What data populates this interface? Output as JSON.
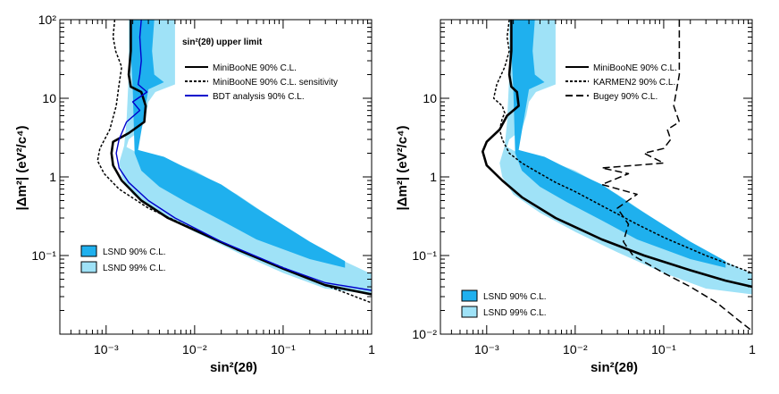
{
  "chart_data": [
    {
      "type": "line",
      "panel": "left",
      "title": "sin²(2θ) upper limit",
      "xlabel": "sin²(2θ)",
      "ylabel": "|Δm²| (eV²/c⁴)",
      "x_scale": "log",
      "y_scale": "log",
      "xlim": [
        0.0003,
        1
      ],
      "ylim": [
        0.01,
        100
      ],
      "x_ticks": [
        {
          "value": 0.001,
          "label": "10⁻³"
        },
        {
          "value": 0.01,
          "label": "10⁻²"
        },
        {
          "value": 0.1,
          "label": "10⁻¹"
        },
        {
          "value": 1,
          "label": "1"
        }
      ],
      "y_ticks": [
        {
          "value": 0.1,
          "label": "10⁻¹"
        },
        {
          "value": 1,
          "label": "1"
        },
        {
          "value": 10,
          "label": "10"
        },
        {
          "value": 100,
          "label": "10²"
        }
      ],
      "lines": [
        {
          "name": "MiniBooNE 90% C.L.",
          "color": "#000000",
          "dash": "solid",
          "width": 2.6,
          "points": [
            [
              0.0019,
              100
            ],
            [
              0.0019,
              40
            ],
            [
              0.0018,
              20
            ],
            [
              0.0019,
              14
            ],
            [
              0.0025,
              12
            ],
            [
              0.0028,
              8
            ],
            [
              0.0027,
              5
            ],
            [
              0.0018,
              3.6
            ],
            [
              0.0012,
              2.8
            ],
            [
              0.00115,
              2.0
            ],
            [
              0.0012,
              1.4
            ],
            [
              0.0015,
              0.9
            ],
            [
              0.0025,
              0.5
            ],
            [
              0.005,
              0.3
            ],
            [
              0.01,
              0.21
            ],
            [
              0.03,
              0.12
            ],
            [
              0.1,
              0.068
            ],
            [
              0.3,
              0.042
            ],
            [
              1,
              0.032
            ]
          ]
        },
        {
          "name": "MiniBooNE 90% C.L. sensitivity",
          "color": "#000000",
          "dash": "3,2",
          "width": 1.5,
          "points": [
            [
              0.00125,
              100
            ],
            [
              0.0012,
              60
            ],
            [
              0.00128,
              40
            ],
            [
              0.0015,
              25
            ],
            [
              0.0014,
              15
            ],
            [
              0.0013,
              8
            ],
            [
              0.0011,
              4
            ],
            [
              0.00085,
              2.3
            ],
            [
              0.0008,
              1.6
            ],
            [
              0.00095,
              1.1
            ],
            [
              0.0014,
              0.7
            ],
            [
              0.003,
              0.4
            ],
            [
              0.008,
              0.24
            ],
            [
              0.03,
              0.12
            ],
            [
              0.1,
              0.07
            ],
            [
              0.3,
              0.042
            ],
            [
              1,
              0.025
            ]
          ]
        },
        {
          "name": "BDT analysis 90% C.L.",
          "color": "#0000cc",
          "dash": "solid",
          "width": 1.4,
          "points": [
            [
              0.0025,
              100
            ],
            [
              0.0024,
              60
            ],
            [
              0.0025,
              30
            ],
            [
              0.0024,
              20
            ],
            [
              0.0023,
              15
            ],
            [
              0.0029,
              12
            ],
            [
              0.002,
              9
            ],
            [
              0.0024,
              7
            ],
            [
              0.0017,
              5
            ],
            [
              0.0014,
              3
            ],
            [
              0.0013,
              2
            ],
            [
              0.0014,
              1.3
            ],
            [
              0.0018,
              0.85
            ],
            [
              0.003,
              0.5
            ],
            [
              0.006,
              0.3
            ],
            [
              0.02,
              0.15
            ],
            [
              0.1,
              0.07
            ],
            [
              0.3,
              0.045
            ],
            [
              1,
              0.036
            ]
          ]
        }
      ],
      "regions": [
        {
          "name": "LSND 99% C.L.",
          "color": "#9fe2f7",
          "points": [
            [
              0.0018,
              100
            ],
            [
              0.006,
              100
            ],
            [
              0.006,
              15
            ],
            [
              0.0036,
              12
            ],
            [
              0.003,
              9
            ],
            [
              0.0028,
              6
            ],
            [
              0.0025,
              4
            ],
            [
              0.0018,
              3
            ],
            [
              0.0017,
              2.4
            ],
            [
              0.0023,
              2.0
            ],
            [
              0.0045,
              1.7
            ],
            [
              0.01,
              1.2
            ],
            [
              0.03,
              0.6
            ],
            [
              0.1,
              0.24
            ],
            [
              0.3,
              0.11
            ],
            [
              1,
              0.058
            ],
            [
              1,
              0.032
            ],
            [
              0.3,
              0.038
            ],
            [
              0.1,
              0.06
            ],
            [
              0.03,
              0.11
            ],
            [
              0.01,
              0.2
            ],
            [
              0.004,
              0.35
            ],
            [
              0.002,
              0.6
            ],
            [
              0.0015,
              1.0
            ],
            [
              0.0014,
              1.5
            ],
            [
              0.0016,
              2.5
            ],
            [
              0.0017,
              5
            ],
            [
              0.0018,
              20
            ]
          ]
        },
        {
          "name": "LSND 90% C.L.",
          "color": "#1fb0ee",
          "points": [
            [
              0.0019,
              100
            ],
            [
              0.0035,
              100
            ],
            [
              0.0033,
              40
            ],
            [
              0.0035,
              20
            ],
            [
              0.0045,
              16
            ],
            [
              0.003,
              13
            ],
            [
              0.0023,
              2.2
            ],
            [
              0.0045,
              1.8
            ],
            [
              0.008,
              1.3
            ],
            [
              0.02,
              0.8
            ],
            [
              0.05,
              0.4
            ],
            [
              0.2,
              0.15
            ],
            [
              0.5,
              0.085
            ],
            [
              0.5,
              0.07
            ],
            [
              0.2,
              0.09
            ],
            [
              0.05,
              0.16
            ],
            [
              0.02,
              0.28
            ],
            [
              0.008,
              0.48
            ],
            [
              0.004,
              0.75
            ],
            [
              0.0025,
              1.2
            ],
            [
              0.0021,
              2.0
            ],
            [
              0.002,
              13
            ],
            [
              0.0019,
              40
            ]
          ]
        }
      ],
      "legend": [
        {
          "label": "MiniBooNE 90% C.L.",
          "color": "#000000",
          "dash": "solid"
        },
        {
          "label": "MiniBooNE 90% C.L. sensitivity",
          "color": "#000000",
          "dash": "3,2"
        },
        {
          "label": "BDT analysis 90% C.L.",
          "color": "#0000cc",
          "dash": "solid"
        }
      ],
      "box_legend": [
        {
          "label": "LSND 90% C.L.",
          "color": "#1fb0ee"
        },
        {
          "label": "LSND 99% C.L.",
          "color": "#9fe2f7"
        }
      ],
      "legend_position": "top-right"
    },
    {
      "type": "line",
      "panel": "right",
      "title": "",
      "xlabel": "sin²(2θ)",
      "ylabel": "|Δm²| (eV²/c⁴)",
      "x_scale": "log",
      "y_scale": "log",
      "xlim": [
        0.0003,
        1
      ],
      "ylim": [
        0.01,
        100
      ],
      "x_ticks": [
        {
          "value": 0.001,
          "label": "10⁻³"
        },
        {
          "value": 0.01,
          "label": "10⁻²"
        },
        {
          "value": 0.1,
          "label": "10⁻¹"
        },
        {
          "value": 1,
          "label": "1"
        }
      ],
      "y_ticks": [
        {
          "value": 0.01,
          "label": "10⁻²"
        },
        {
          "value": 0.1,
          "label": "10⁻¹"
        },
        {
          "value": 1,
          "label": "1"
        },
        {
          "value": 10,
          "label": "10"
        }
      ],
      "lines": [
        {
          "name": "MiniBooNE 90% C.L.",
          "color": "#000000",
          "dash": "solid",
          "width": 2.6,
          "points": [
            [
              0.0019,
              100
            ],
            [
              0.0019,
              40
            ],
            [
              0.0018,
              20
            ],
            [
              0.0019,
              14
            ],
            [
              0.0022,
              12
            ],
            [
              0.0023,
              8
            ],
            [
              0.0017,
              6
            ],
            [
              0.0014,
              4
            ],
            [
              0.001,
              2.8
            ],
            [
              0.0009,
              2.1
            ],
            [
              0.001,
              1.4
            ],
            [
              0.0015,
              0.9
            ],
            [
              0.0025,
              0.55
            ],
            [
              0.006,
              0.3
            ],
            [
              0.02,
              0.16
            ],
            [
              0.06,
              0.1
            ],
            [
              0.2,
              0.065
            ],
            [
              0.5,
              0.048
            ],
            [
              1,
              0.04
            ]
          ]
        },
        {
          "name": "KARMEN2 90% C.L.",
          "color": "#000000",
          "dash": "3,2",
          "width": 1.5,
          "points": [
            [
              0.0018,
              100
            ],
            [
              0.0017,
              60
            ],
            [
              0.0018,
              40
            ],
            [
              0.0016,
              25
            ],
            [
              0.0013,
              15
            ],
            [
              0.0012,
              10
            ],
            [
              0.0015,
              8
            ],
            [
              0.0016,
              6.5
            ],
            [
              0.0015,
              5.5
            ],
            [
              0.0014,
              4
            ],
            [
              0.0015,
              3
            ],
            [
              0.0018,
              2
            ],
            [
              0.0025,
              1.5
            ],
            [
              0.0035,
              1.2
            ],
            [
              0.006,
              0.85
            ],
            [
              0.01,
              0.65
            ],
            [
              0.02,
              0.43
            ],
            [
              0.05,
              0.25
            ],
            [
              0.1,
              0.17
            ],
            [
              0.3,
              0.1
            ],
            [
              1,
              0.06
            ]
          ]
        },
        {
          "name": "Bugey 90% C.L.",
          "color": "#000000",
          "dash": "8,4",
          "width": 1.5,
          "points": [
            [
              0.15,
              100
            ],
            [
              0.15,
              20
            ],
            [
              0.13,
              8
            ],
            [
              0.15,
              5
            ],
            [
              0.11,
              4
            ],
            [
              0.12,
              3
            ],
            [
              0.1,
              2.3
            ],
            [
              0.06,
              2
            ],
            [
              0.1,
              1.5
            ],
            [
              0.02,
              1.3
            ],
            [
              0.04,
              1.1
            ],
            [
              0.02,
              0.8
            ],
            [
              0.05,
              0.6
            ],
            [
              0.03,
              0.4
            ],
            [
              0.04,
              0.25
            ],
            [
              0.035,
              0.15
            ],
            [
              0.045,
              0.1
            ],
            [
              0.1,
              0.06
            ],
            [
              0.2,
              0.04
            ],
            [
              0.4,
              0.025
            ],
            [
              0.7,
              0.015
            ],
            [
              1,
              0.011
            ]
          ]
        }
      ],
      "regions": [
        {
          "name": "LSND 99% C.L.",
          "color": "#9fe2f7",
          "points": [
            [
              0.0018,
              100
            ],
            [
              0.006,
              100
            ],
            [
              0.006,
              15
            ],
            [
              0.0036,
              12
            ],
            [
              0.003,
              9
            ],
            [
              0.0028,
              6
            ],
            [
              0.0025,
              4
            ],
            [
              0.0018,
              3
            ],
            [
              0.0017,
              2.4
            ],
            [
              0.0023,
              2.0
            ],
            [
              0.0045,
              1.7
            ],
            [
              0.01,
              1.2
            ],
            [
              0.03,
              0.6
            ],
            [
              0.1,
              0.24
            ],
            [
              0.3,
              0.11
            ],
            [
              1,
              0.058
            ],
            [
              1,
              0.032
            ],
            [
              0.3,
              0.038
            ],
            [
              0.1,
              0.06
            ],
            [
              0.03,
              0.11
            ],
            [
              0.01,
              0.2
            ],
            [
              0.004,
              0.35
            ],
            [
              0.002,
              0.6
            ],
            [
              0.0015,
              1.0
            ],
            [
              0.0014,
              1.5
            ],
            [
              0.0016,
              2.5
            ],
            [
              0.0017,
              5
            ],
            [
              0.0018,
              20
            ]
          ]
        },
        {
          "name": "LSND 90% C.L.",
          "color": "#1fb0ee",
          "points": [
            [
              0.0019,
              100
            ],
            [
              0.0035,
              100
            ],
            [
              0.0033,
              40
            ],
            [
              0.0035,
              20
            ],
            [
              0.0045,
              16
            ],
            [
              0.003,
              13
            ],
            [
              0.0023,
              2.2
            ],
            [
              0.0045,
              1.8
            ],
            [
              0.008,
              1.3
            ],
            [
              0.02,
              0.8
            ],
            [
              0.05,
              0.4
            ],
            [
              0.2,
              0.15
            ],
            [
              0.5,
              0.085
            ],
            [
              0.5,
              0.07
            ],
            [
              0.2,
              0.09
            ],
            [
              0.05,
              0.16
            ],
            [
              0.02,
              0.28
            ],
            [
              0.008,
              0.48
            ],
            [
              0.004,
              0.75
            ],
            [
              0.0025,
              1.2
            ],
            [
              0.0021,
              2.0
            ],
            [
              0.002,
              13
            ],
            [
              0.0019,
              40
            ]
          ]
        }
      ],
      "legend": [
        {
          "label": "MiniBooNE 90% C.L.",
          "color": "#000000",
          "dash": "solid"
        },
        {
          "label": "KARMEN2 90% C.L.",
          "color": "#000000",
          "dash": "3,2"
        },
        {
          "label": "Bugey 90% C.L.",
          "color": "#000000",
          "dash": "8,4"
        }
      ],
      "box_legend": [
        {
          "label": "LSND 90% C.L.",
          "color": "#1fb0ee"
        },
        {
          "label": "LSND 99% C.L.",
          "color": "#9fe2f7"
        }
      ],
      "legend_position": "top-right"
    }
  ]
}
